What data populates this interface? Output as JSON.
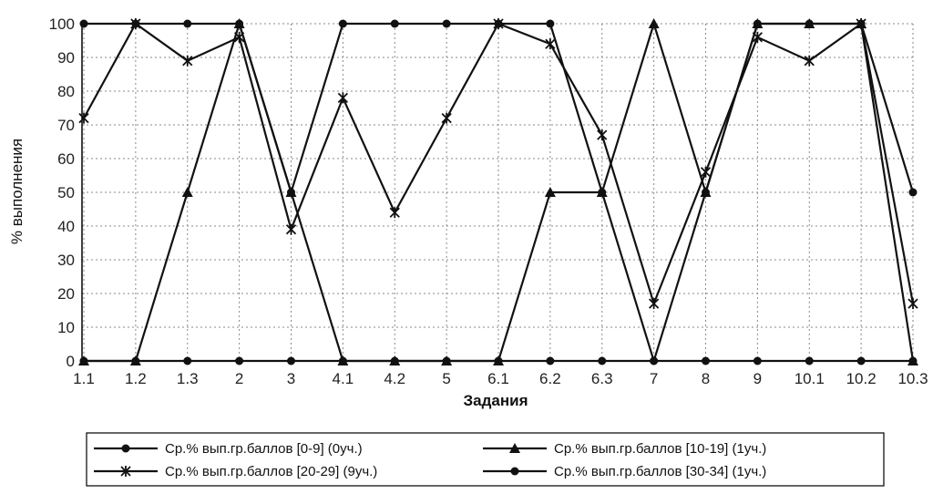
{
  "colors": {
    "series": "#111111",
    "grid": "#8a8a8a",
    "background": "#ffffff"
  },
  "chart_data": {
    "type": "line",
    "title": "",
    "xlabel": "Задания",
    "ylabel": "% выполнения",
    "ylim": [
      0,
      100
    ],
    "yticks": [
      0,
      10,
      20,
      30,
      40,
      50,
      60,
      70,
      80,
      90,
      100
    ],
    "grid": true,
    "legend_position": "bottom",
    "categories": [
      "1.1",
      "1.2",
      "1.3",
      "2",
      "3",
      "4.1",
      "4.2",
      "5",
      "6.1",
      "6.2",
      "6.3",
      "7",
      "8",
      "9",
      "10.1",
      "10.2",
      "10.3"
    ],
    "series": [
      {
        "name": "Ср.% вып.гр.баллов [0-9] (0уч.)",
        "marker": "circle",
        "values": [
          0,
          0,
          0,
          0,
          0,
          0,
          0,
          0,
          0,
          0,
          0,
          0,
          0,
          0,
          0,
          0,
          0
        ]
      },
      {
        "name": "Ср.% вып.гр.баллов [10-19] (1уч.)",
        "marker": "triangle",
        "values": [
          0,
          0,
          50,
          100,
          50,
          0,
          0,
          0,
          0,
          50,
          50,
          100,
          50,
          100,
          100,
          100,
          0
        ]
      },
      {
        "name": "Ср.% вып.гр.баллов [20-29] (9уч.)",
        "marker": "star",
        "values": [
          72,
          100,
          89,
          96,
          39,
          78,
          44,
          72,
          100,
          94,
          67,
          17,
          56,
          96,
          89,
          100,
          17
        ]
      },
      {
        "name": "Ср.% вып.гр.баллов [30-34] (1уч.)",
        "marker": "circle",
        "values": [
          100,
          100,
          100,
          100,
          50,
          100,
          100,
          100,
          100,
          100,
          50,
          0,
          50,
          100,
          100,
          100,
          50
        ]
      }
    ]
  }
}
